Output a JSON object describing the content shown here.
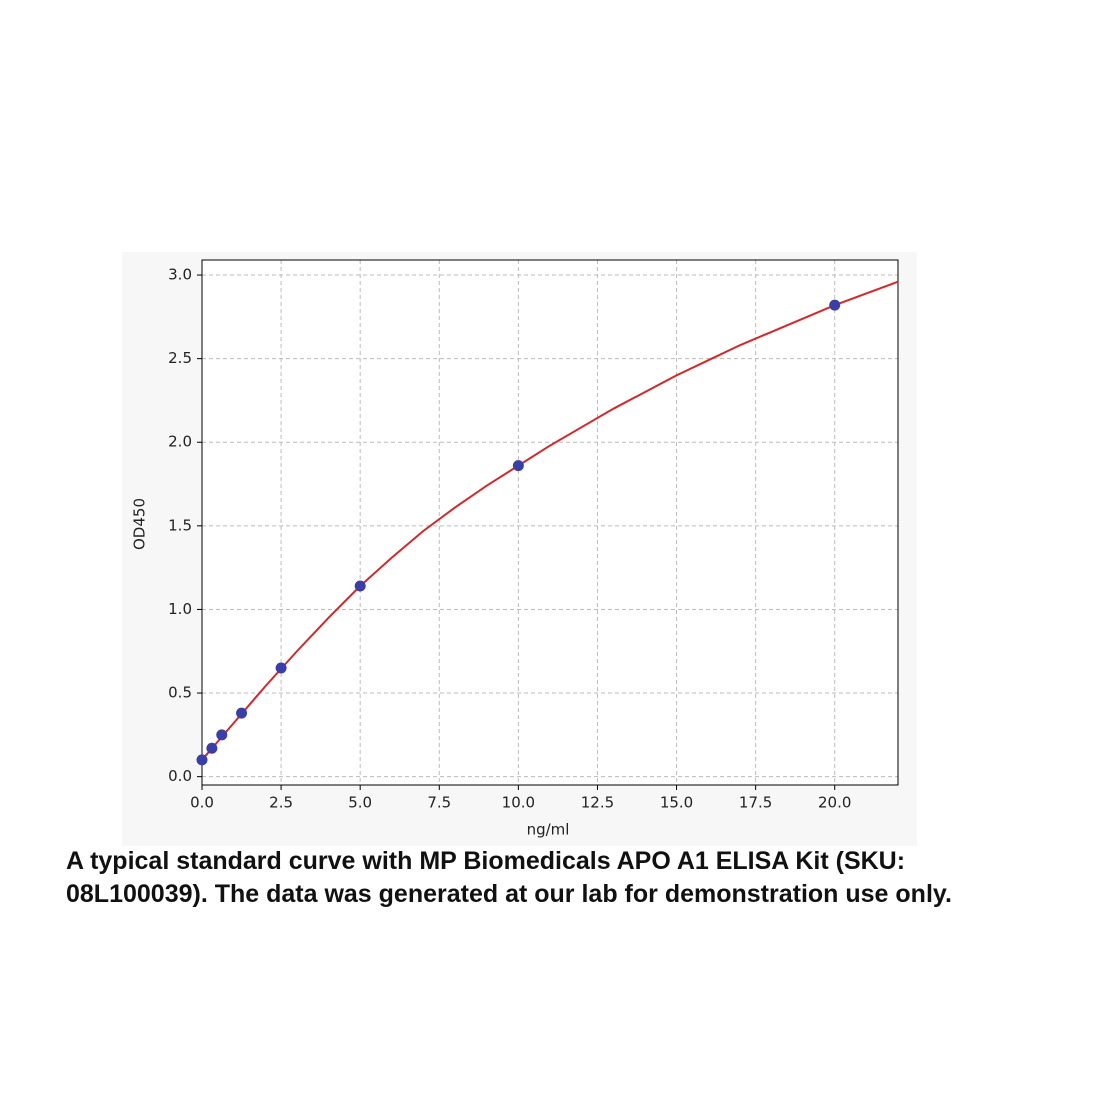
{
  "chart_data": {
    "type": "scatter",
    "y_label": "OD450",
    "x_label": "ng/ml",
    "xlim": [
      0,
      22
    ],
    "ylim": [
      -0.05,
      3.09
    ],
    "xticks": [
      {
        "value": 0,
        "label": "0.0"
      },
      {
        "value": 2.5,
        "label": "2.5"
      },
      {
        "value": 5,
        "label": "5.0"
      },
      {
        "value": 7.5,
        "label": "7.5"
      },
      {
        "value": 10,
        "label": "10.0"
      },
      {
        "value": 12.5,
        "label": "12.5"
      },
      {
        "value": 15,
        "label": "15.0"
      },
      {
        "value": 17.5,
        "label": "17.5"
      },
      {
        "value": 20,
        "label": "20.0"
      }
    ],
    "yticks": [
      {
        "value": 0,
        "label": "0.0"
      },
      {
        "value": 0.5,
        "label": "0.5"
      },
      {
        "value": 1,
        "label": "1.0"
      },
      {
        "value": 1.5,
        "label": "1.5"
      },
      {
        "value": 2,
        "label": "2.0"
      },
      {
        "value": 2.5,
        "label": "2.5"
      },
      {
        "value": 3,
        "label": "3.0"
      }
    ],
    "grid": true,
    "series": [
      {
        "type": "scatter",
        "color": "#3a3ea8",
        "x": [
          0,
          0.3125,
          0.625,
          1.25,
          2.5,
          5,
          10,
          20
        ],
        "values": [
          0.1,
          0.17,
          0.25,
          0.38,
          0.65,
          1.14,
          1.86,
          2.82
        ]
      },
      {
        "type": "line",
        "color": "#d62728",
        "x": [
          0,
          1,
          2,
          3,
          4,
          5,
          6,
          7,
          8,
          9,
          10,
          11,
          12,
          13,
          14,
          15,
          16,
          17,
          18,
          19,
          20,
          21,
          22
        ],
        "values": [
          0.1,
          0.32,
          0.54,
          0.75,
          0.95,
          1.14,
          1.31,
          1.47,
          1.61,
          1.74,
          1.86,
          1.98,
          2.09,
          2.2,
          2.3,
          2.4,
          2.49,
          2.58,
          2.66,
          2.74,
          2.82,
          2.89,
          2.96
        ]
      }
    ]
  },
  "caption": [
    "A typical standard curve with MP Biomedicals APO A1 ELISA Kit (SKU:",
    "08L100039). The data was generated at our lab for demonstration use only."
  ]
}
